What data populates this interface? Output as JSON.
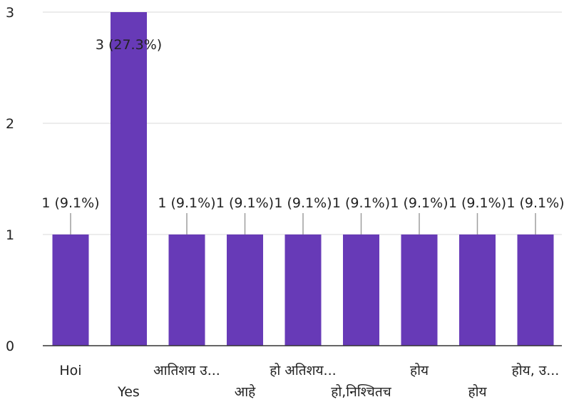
{
  "chart_data": {
    "type": "bar",
    "categories": [
      "Hoi",
      "Yes",
      "आतिशय उ...",
      "आहे",
      "हो अतिशय...",
      "हो,निश्चितच",
      "होय",
      "होय",
      "होय, उ..."
    ],
    "values": [
      1,
      3,
      1,
      1,
      1,
      1,
      1,
      1,
      1
    ],
    "data_labels": [
      "1 (9.1%)",
      "3 (27.3%)",
      "1 (9.1%)",
      "1 (9.1%)",
      "1 (9.1%)",
      "1 (9.1%)",
      "1 (9.1%)",
      "1 (9.1%)",
      "1 (9.1%)"
    ],
    "yticks": [
      "0",
      "1",
      "2",
      "3"
    ],
    "ylim": [
      0,
      3
    ],
    "grid": true,
    "colors": {
      "bar": "#673ab7",
      "grid": "#e6e6e6",
      "axis": "#333333"
    }
  }
}
